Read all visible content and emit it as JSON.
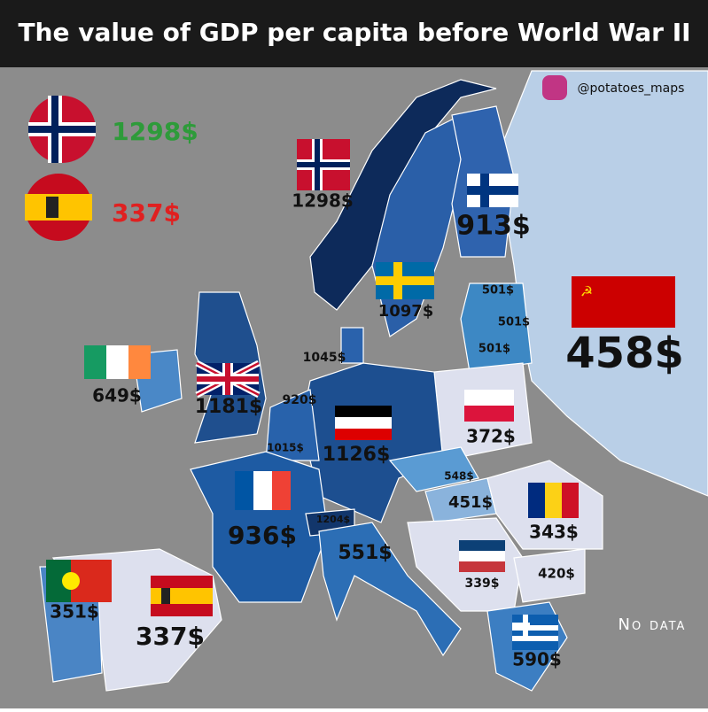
{
  "header": {
    "title": "The value of GDP per capita before World War II",
    "credit": "@potatoes_maps"
  },
  "legend": {
    "highest": "1298$",
    "lowest": "337$"
  },
  "countries": [
    {
      "name": "Norway",
      "label": "1298$"
    },
    {
      "name": "Finland",
      "label": "913$"
    },
    {
      "name": "Sweden",
      "label": "1097$"
    },
    {
      "name": "USSR",
      "label": "458$"
    },
    {
      "name": "Estonia",
      "label": "501$"
    },
    {
      "name": "Latvia",
      "label": "501$"
    },
    {
      "name": "Lithuania",
      "label": "501$"
    },
    {
      "name": "Denmark",
      "label": "1045$"
    },
    {
      "name": "Ireland",
      "label": "649$"
    },
    {
      "name": "United Kingdom",
      "label": "1181$"
    },
    {
      "name": "Netherlands",
      "label": "920$"
    },
    {
      "name": "Germany",
      "label": "1126$"
    },
    {
      "name": "Poland",
      "label": "372$"
    },
    {
      "name": "Belgium",
      "label": "1015$"
    },
    {
      "name": "France",
      "label": "936$"
    },
    {
      "name": "Czechoslovakia",
      "label": "548$"
    },
    {
      "name": "Hungary",
      "label": "451$"
    },
    {
      "name": "Romania",
      "label": "343$"
    },
    {
      "name": "Switzerland",
      "label": "1204$"
    },
    {
      "name": "Italy",
      "label": "551$"
    },
    {
      "name": "Yugoslavia",
      "label": "339$"
    },
    {
      "name": "Bulgaria",
      "label": "420$"
    },
    {
      "name": "Portugal",
      "label": "351$"
    },
    {
      "name": "Spain",
      "label": "337$"
    },
    {
      "name": "Greece",
      "label": "590$"
    }
  ],
  "no_data": "No data"
}
